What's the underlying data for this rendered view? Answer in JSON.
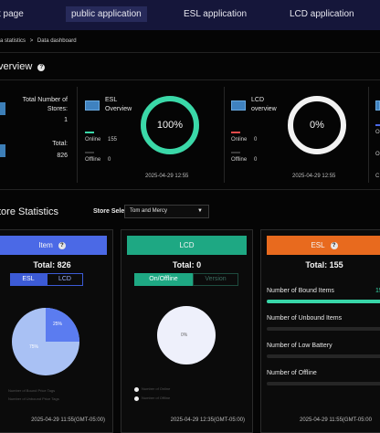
{
  "nav": {
    "tabs": [
      {
        "label": "t page"
      },
      {
        "label": "public application"
      },
      {
        "label": "ESL application"
      },
      {
        "label": "LCD application"
      }
    ]
  },
  "breadcrumb": {
    "parent": "a statistics",
    "separator": ">",
    "current": "Data dashboard"
  },
  "overview": {
    "title": "verview",
    "total_devices_label_line1": "Total Number of",
    "total_devices_label_line2": "Stores:",
    "total_devices_value": "1",
    "total_label": "Total:",
    "total_value": "826",
    "esl": {
      "title_line1": "ESL",
      "title_line2": "Overview",
      "online_label": "Online",
      "online_value": "155",
      "offline_label": "Offline",
      "offline_value": "0",
      "percent": "100%",
      "percent_fraction": 1.0,
      "ring_color": "#3ad8a8",
      "timestamp": "2025-04-29 12:55"
    },
    "lcd": {
      "title_line1": "LCD",
      "title_line2": "overview",
      "online_label": "Online",
      "online_value": "0",
      "offline_label": "Offline",
      "offline_value": "0",
      "percent": "0%",
      "percent_fraction": 0.0,
      "ring_color": "#f2f2f2",
      "timestamp": "2025-04-29 12:55"
    },
    "right_cut": {
      "online_label": "O",
      "offline_label": "O",
      "timestamp": "C"
    }
  },
  "store_stats": {
    "title": "tore Statistics",
    "store_select_label": "Store Select",
    "store_select_value": "Tom and Mercy",
    "item_card": {
      "header": "Item",
      "header_color": "#4b69e6",
      "total": "Total: 826",
      "seg_esl": "ESL",
      "seg_lcd": "LCD",
      "pie": {
        "slice_small_label": "25%",
        "slice_large_label": "75%",
        "slice_small_fraction": 0.25
      },
      "legend": [
        "Number of Bound Price Tags",
        "Number of Unbound Price Tags"
      ],
      "timestamp": "2025-04-29 11:55(GMT-05:00)"
    },
    "lcd_card": {
      "header": "LCD",
      "header_color": "#1ea883",
      "total": "Total: 0",
      "seg_on": "On/Offline",
      "seg_version": "Version",
      "pie_label": "0%",
      "legend": [
        "Number of Online",
        "Number of Offline"
      ],
      "timestamp": "2025-04-29 12:35(GMT-05:00)"
    },
    "esl_card": {
      "header": "ESL",
      "header_color": "#e86a1e",
      "total": "Total: 155",
      "rows": [
        {
          "label": "Number of Bound Items",
          "value": "15",
          "fraction": 1.0
        },
        {
          "label": "Number of Unbound Items",
          "value": "",
          "fraction": 0.0
        },
        {
          "label": "Number of Low Battery",
          "value": "",
          "fraction": 0.0
        },
        {
          "label": "Number of Offline",
          "value": "",
          "fraction": 0.0
        }
      ],
      "timestamp": "2025-04-29 11:55(GMT-05:00"
    }
  }
}
